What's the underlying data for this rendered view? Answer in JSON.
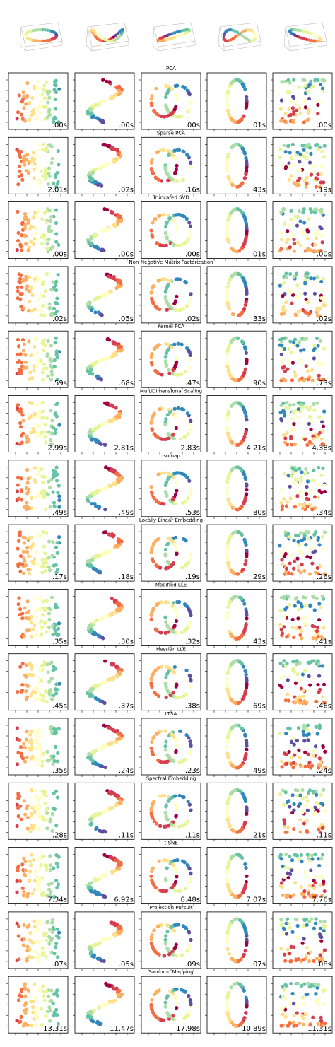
{
  "rows": [
    {
      "title": "PCA",
      "times": [
        ".00s",
        ".00s",
        ".00s",
        ".01s",
        ".00s"
      ]
    },
    {
      "title": "Sparse PCA",
      "times": [
        "2.01s",
        ".02s",
        ".16s",
        ".43s",
        ".19s"
      ]
    },
    {
      "title": "Truncated SVD",
      "times": [
        ".00s",
        ".00s",
        ".00s",
        ".01s",
        ".00s"
      ]
    },
    {
      "title": "Non-Negative Matrix Factorization",
      "times": [
        ".02s",
        ".05s",
        ".02s",
        ".33s",
        ".02s"
      ]
    },
    {
      "title": "Kernel PCA",
      "times": [
        ".59s",
        ".68s",
        ".47s",
        ".90s",
        ".73s"
      ]
    },
    {
      "title": "MultiDimensional Scaling",
      "times": [
        "2.99s",
        "2.81s",
        "2.83s",
        "4.21s",
        "4.38s"
      ]
    },
    {
      "title": "Isomap",
      "times": [
        ".49s",
        ".49s",
        ".53s",
        ".80s",
        ".34s"
      ]
    },
    {
      "title": "Locally Linear Embedding",
      "times": [
        ".17s",
        ".18s",
        ".19s",
        ".29s",
        ".26s"
      ]
    },
    {
      "title": "Modified LLE",
      "times": [
        ".35s",
        ".30s",
        ".32s",
        ".43s",
        ".41s"
      ]
    },
    {
      "title": "Hessian LLE",
      "times": [
        ".45s",
        ".37s",
        ".38s",
        ".69s",
        ".46s"
      ]
    },
    {
      "title": "LTSA",
      "times": [
        ".35s",
        ".24s",
        ".23s",
        ".49s",
        ".24s"
      ]
    },
    {
      "title": "Spectral Embedding",
      "times": [
        ".28s",
        ".11s",
        ".11s",
        ".21s",
        ".11s"
      ]
    },
    {
      "title": "t-SNE",
      "times": [
        "7.34s",
        "6.92s",
        "8.48s",
        "7.07s",
        "7.76s"
      ]
    },
    {
      "title": "Projection Pursuit",
      "times": [
        ".07s",
        ".05s",
        ".09s",
        ".07s",
        ".08s"
      ]
    },
    {
      "title": "Sammon Mapping",
      "times": [
        "13.31s",
        "11.47s",
        "17.98s",
        "10.89s",
        "11.31s"
      ]
    }
  ]
}
